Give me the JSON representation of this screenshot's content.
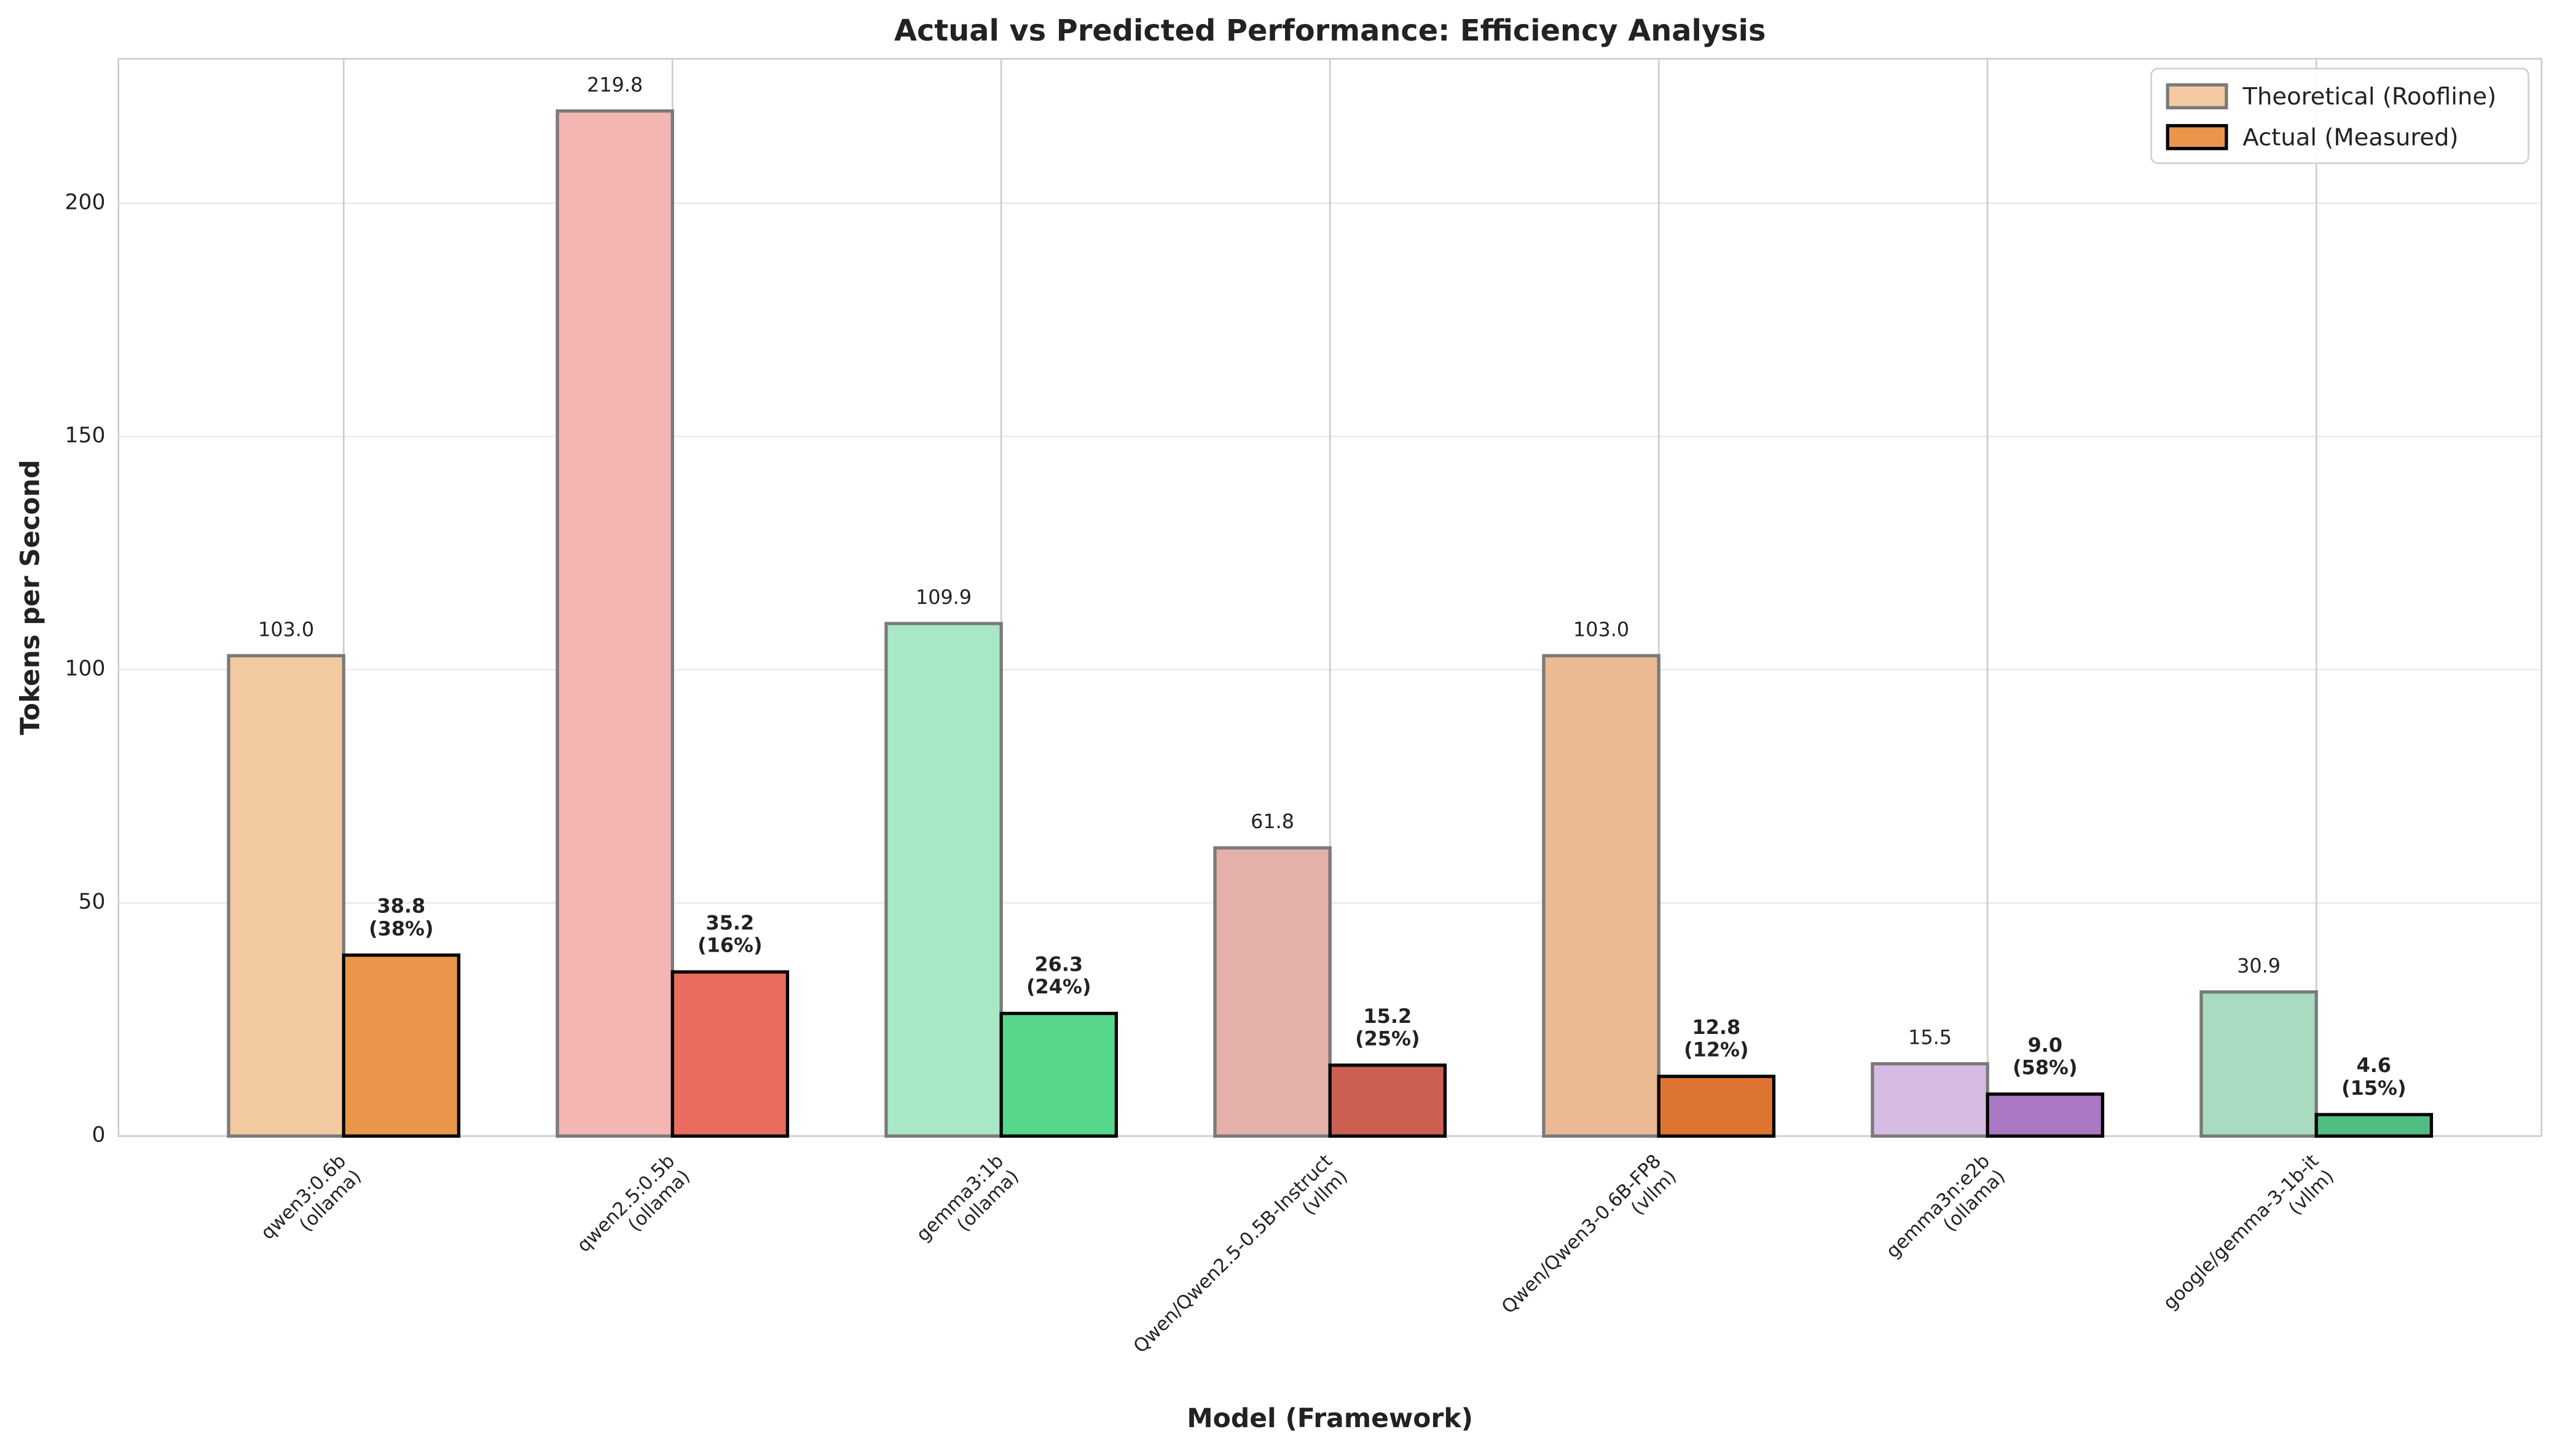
{
  "chart_data": {
    "type": "grouped_bar",
    "title": "Actual vs Predicted Performance: Efficiency Analysis",
    "x_label": "Model (Framework)",
    "y_label": "Tokens per Second",
    "categories": [
      "qwen3:0.6b\n(ollama)",
      "qwen2.5:0.5b\n(ollama)",
      "gemma3:1b\n(ollama)",
      "Qwen/Qwen2.5-0.5B-Instruct\n(vllm)",
      "Qwen/Qwen3-0.6B-FP8\n(vllm)",
      "gemma3n:e2b\n(ollama)",
      "google/gemma-3-1b-it\n(vllm)"
    ],
    "series": [
      {
        "name": "Theoretical (Roofline)",
        "color": "#f3c9a2",
        "colors": [
          "#f3c9a2",
          "#f4b6b2",
          "#a9e8c5",
          "#e4b0aa",
          "#ebb994",
          "#d6bce2",
          "#a8dbbf"
        ],
        "values": [
          103.0,
          219.8,
          109.9,
          61.8,
          103.0,
          15.5,
          30.9
        ],
        "value_labels": [
          "103.0",
          "219.8",
          "109.9",
          "61.8",
          "103.0",
          "15.5",
          "30.9"
        ]
      },
      {
        "name": "Actual (Measured)",
        "color": "#e9964b",
        "colors": [
          "#e9964b",
          "#ea6b5f",
          "#55d68a",
          "#cb5f52",
          "#de7431",
          "#aa78c2",
          "#52bd83"
        ],
        "values": [
          38.8,
          35.2,
          26.3,
          15.2,
          12.8,
          9.0,
          4.6
        ],
        "value_labels": [
          "38.8\n(38%)",
          "35.2\n(16%)",
          "26.3\n(24%)",
          "15.2\n(25%)",
          "12.8\n(12%)",
          "9.0\n(58%)",
          "4.6\n(15%)"
        ]
      }
    ],
    "ylim": [
      0,
      231
    ],
    "yticks": [
      0,
      50,
      100,
      150,
      200
    ],
    "grid": true,
    "legend": "upper right"
  }
}
